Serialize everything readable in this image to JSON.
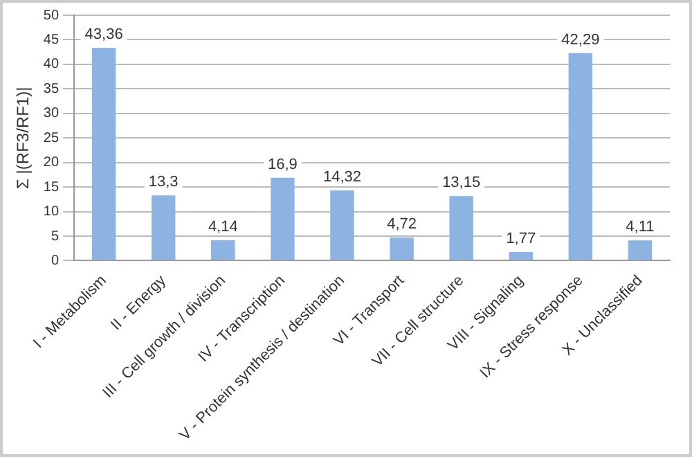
{
  "chart_data": {
    "type": "bar",
    "ylabel": "Σ |(RF3/RF1)|",
    "categories": [
      "I - Metabolism",
      "II - Energy",
      "III - Cell growth / division",
      "IV - Transcription",
      "V - Protein synthesis / destination",
      "VI - Transport",
      "VII - Cell structure",
      "VIII - Signaling",
      "IX - Stress response",
      "X - Unclassified"
    ],
    "values": [
      43.36,
      13.3,
      4.14,
      16.9,
      14.32,
      4.72,
      13.15,
      1.77,
      42.29,
      4.11
    ],
    "value_labels": [
      "43,36",
      "13,3",
      "4,14",
      "16,9",
      "14,32",
      "4,72",
      "13,15",
      "1,77",
      "42,29",
      "4,11"
    ],
    "color": "#8db3e2",
    "ylim": [
      0,
      50
    ],
    "yticks": [
      0,
      5,
      10,
      15,
      20,
      25,
      30,
      35,
      40,
      45,
      50
    ],
    "grid": "y",
    "legend": false
  }
}
